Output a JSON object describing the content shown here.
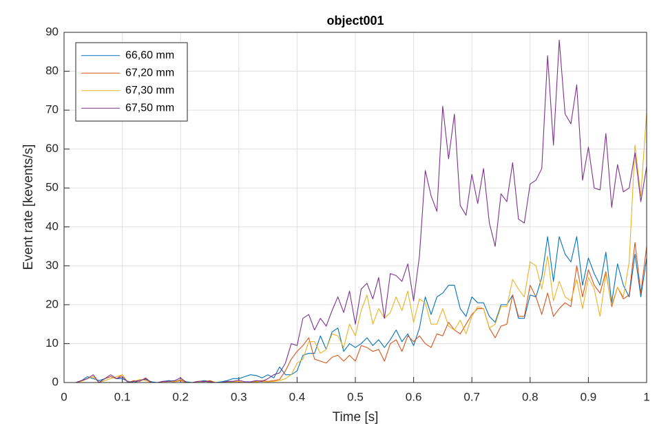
{
  "chart_data": {
    "type": "line",
    "title": "object001",
    "xlabel": "Time [s]",
    "ylabel": "Event rate [kevents/s]",
    "x": [
      0.01,
      0.02,
      0.03,
      0.04,
      0.05,
      0.06,
      0.07,
      0.08,
      0.09,
      0.1,
      0.11,
      0.12,
      0.13,
      0.14,
      0.15,
      0.16,
      0.17,
      0.18,
      0.19,
      0.2,
      0.21,
      0.22,
      0.23,
      0.24,
      0.25,
      0.26,
      0.27,
      0.28,
      0.29,
      0.3,
      0.31,
      0.32,
      0.33,
      0.34,
      0.35,
      0.36,
      0.37,
      0.38,
      0.39,
      0.4,
      0.41,
      0.42,
      0.43,
      0.44,
      0.45,
      0.46,
      0.47,
      0.48,
      0.49,
      0.5,
      0.51,
      0.52,
      0.53,
      0.54,
      0.55,
      0.56,
      0.57,
      0.58,
      0.59,
      0.6,
      0.61,
      0.62,
      0.63,
      0.64,
      0.65,
      0.66,
      0.67,
      0.68,
      0.69,
      0.7,
      0.71,
      0.72,
      0.73,
      0.74,
      0.75,
      0.76,
      0.77,
      0.78,
      0.79,
      0.8,
      0.81,
      0.82,
      0.83,
      0.84,
      0.85,
      0.86,
      0.87,
      0.88,
      0.89,
      0.9,
      0.91,
      0.92,
      0.93,
      0.94,
      0.95,
      0.96,
      0.97,
      0.98,
      0.99,
      1.0
    ],
    "series": [
      {
        "name": "66,60 mm",
        "color": "#0072BD",
        "values": [
          0,
          0,
          0.5,
          1.5,
          1,
          0.5,
          1,
          1.5,
          1,
          1,
          0.3,
          0,
          0.5,
          0.8,
          0.2,
          0,
          0.3,
          0.5,
          0.3,
          0.8,
          0.2,
          0,
          0.2,
          0.5,
          0.3,
          0,
          0.2,
          0.5,
          1,
          1,
          1.5,
          2,
          1.8,
          1.2,
          2,
          1.2,
          4,
          2,
          2,
          3,
          7,
          7.5,
          7.5,
          12,
          8.5,
          13,
          14,
          8,
          10,
          9,
          10,
          11.5,
          9.5,
          11,
          9,
          11,
          13.5,
          10.5,
          12.5,
          9.5,
          14,
          22,
          17.5,
          22,
          23,
          25,
          25,
          19,
          17,
          22,
          20.5,
          20.5,
          17,
          15.5,
          20,
          20,
          22.5,
          16.5,
          16.5,
          22.5,
          22,
          27,
          37.5,
          26,
          37.5,
          33,
          31,
          37.5,
          25,
          32,
          28,
          25,
          33.5,
          20.5,
          30.5,
          25,
          22,
          33,
          22,
          32
        ]
      },
      {
        "name": "67,20 mm",
        "color": "#D95319",
        "values": [
          0,
          0,
          0.5,
          1,
          1.5,
          0,
          1,
          1.5,
          1,
          2,
          0,
          0.5,
          0.3,
          1.2,
          0,
          0,
          0.2,
          0.3,
          0.2,
          0.5,
          0,
          0,
          0.3,
          0.2,
          0.5,
          0,
          0,
          0.2,
          0.3,
          0.2,
          0,
          0,
          0.3,
          0.5,
          0.3,
          0.5,
          0.8,
          3,
          6,
          8,
          9.5,
          11.5,
          6,
          5.5,
          5,
          6.5,
          7,
          5.5,
          7,
          5.5,
          9.5,
          9,
          8,
          8.5,
          5.5,
          10,
          11,
          8,
          12,
          10.5,
          12,
          10,
          9,
          12.5,
          12,
          15.5,
          13.5,
          12.5,
          15,
          17.5,
          19,
          19,
          14,
          11.5,
          14.5,
          15,
          22.5,
          17,
          17,
          25,
          22,
          17.5,
          23,
          17,
          19,
          20.5,
          19.5,
          30,
          22,
          29,
          25,
          23,
          28.5,
          19.5,
          24.5,
          21.5,
          22.5,
          36,
          23,
          35
        ]
      },
      {
        "name": "67,30 mm",
        "color": "#EDB120",
        "values": [
          0,
          0,
          0.3,
          1,
          1.5,
          0,
          0.5,
          1,
          1.5,
          2,
          0,
          0.3,
          0.8,
          0.5,
          0,
          0,
          0.2,
          0.3,
          0.2,
          0.8,
          0,
          0,
          0.2,
          0.3,
          0.2,
          0,
          0,
          0.2,
          0.2,
          0.3,
          0,
          0,
          0.2,
          0.3,
          0.2,
          0.3,
          0.5,
          1,
          2,
          5,
          6,
          10.5,
          10.5,
          7.5,
          8.5,
          12.5,
          12,
          9,
          15,
          12,
          18.5,
          22.5,
          15,
          19,
          16.5,
          18,
          22,
          18.5,
          23.5,
          15.5,
          21.5,
          20.5,
          15,
          15,
          19,
          14.5,
          13.5,
          16,
          12.5,
          17,
          19.5,
          19,
          14,
          15,
          19.5,
          19.5,
          26.5,
          24,
          22,
          31,
          30,
          24,
          32.5,
          21,
          26,
          22,
          21,
          26.5,
          19,
          27,
          24,
          17,
          28,
          20,
          24.5,
          22,
          31,
          61,
          48,
          69.5
        ]
      },
      {
        "name": "67,50 mm",
        "color": "#7E2F8E",
        "values": [
          0,
          0,
          0.5,
          1,
          2,
          0,
          1,
          2,
          1,
          1.5,
          0,
          0.3,
          0.5,
          1,
          0,
          0,
          0.3,
          0.3,
          0.5,
          1.2,
          0,
          0,
          0.3,
          0.3,
          0.2,
          0,
          0,
          0.3,
          0.3,
          0.6,
          0.2,
          0.2,
          0.5,
          0.3,
          1,
          2,
          2.5,
          5,
          10,
          9.5,
          16.5,
          17.5,
          13.5,
          16.5,
          14.5,
          18.5,
          22,
          18,
          23.5,
          15,
          24,
          25.5,
          21.5,
          27,
          16.5,
          28,
          27.5,
          26,
          30.5,
          21,
          32.5,
          54.5,
          48,
          44,
          71,
          57.5,
          69,
          45.5,
          43,
          53.5,
          46,
          55,
          41,
          35,
          48.5,
          46.5,
          56.5,
          42,
          41,
          51,
          52,
          55,
          84,
          61,
          88,
          69,
          66.5,
          76.5,
          52,
          60.5,
          50,
          49.5,
          64,
          45,
          56,
          49,
          50,
          59,
          46.5,
          55.5
        ]
      }
    ],
    "xlim": [
      0,
      1
    ],
    "xticks": [
      0,
      0.1,
      0.2,
      0.3,
      0.4,
      0.5,
      0.6,
      0.7,
      0.8,
      0.9,
      1
    ],
    "ylim": [
      0,
      90
    ],
    "yticks": [
      0,
      10,
      20,
      30,
      40,
      50,
      60,
      70,
      80,
      90
    ],
    "grid": true,
    "legend": "northwest"
  }
}
